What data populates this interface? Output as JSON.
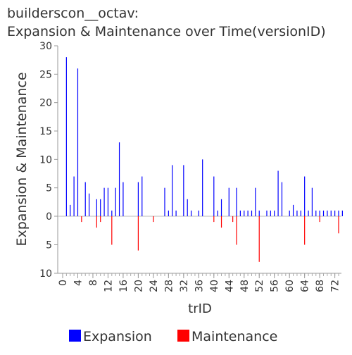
{
  "chart_data": {
    "type": "bar",
    "title_line1": "builderscon__octav:",
    "title_line2": "Expansion & Maintenance over Time(versionID)",
    "xlabel": "trID",
    "ylabel": "Expansion & Maintenance",
    "y_ticks_top": [
      "30",
      "25",
      "20",
      "15",
      "10",
      "5",
      "0"
    ],
    "y_ticks_bottom": [
      "5",
      "10"
    ],
    "ylim_top": 30,
    "ylim_bottom": 10,
    "x_ticks": [
      "0",
      "4",
      "8",
      "12",
      "16",
      "20",
      "24",
      "28",
      "32",
      "36",
      "40",
      "44",
      "48",
      "52",
      "56",
      "60",
      "64",
      "68",
      "72"
    ],
    "xlim": [
      0,
      73
    ],
    "legend_position": "bottom",
    "series": [
      {
        "name": "Expansion",
        "color": "#0000ff",
        "points": [
          [
            1,
            28
          ],
          [
            2,
            2
          ],
          [
            3,
            7
          ],
          [
            4,
            26
          ],
          [
            5,
            0
          ],
          [
            6,
            6
          ],
          [
            7,
            4
          ],
          [
            8,
            0
          ],
          [
            9,
            3
          ],
          [
            10,
            3
          ],
          [
            11,
            5
          ],
          [
            12,
            5
          ],
          [
            13,
            1
          ],
          [
            14,
            5
          ],
          [
            15,
            13
          ],
          [
            16,
            6
          ],
          [
            20,
            6
          ],
          [
            21,
            7
          ],
          [
            27,
            5
          ],
          [
            28,
            1
          ],
          [
            29,
            9
          ],
          [
            30,
            1
          ],
          [
            32,
            9
          ],
          [
            33,
            3
          ],
          [
            34,
            1
          ],
          [
            36,
            1
          ],
          [
            37,
            10
          ],
          [
            40,
            7
          ],
          [
            41,
            1
          ],
          [
            42,
            3
          ],
          [
            44,
            5
          ],
          [
            46,
            5
          ],
          [
            47,
            1
          ],
          [
            48,
            1
          ],
          [
            49,
            1
          ],
          [
            50,
            1
          ],
          [
            51,
            5
          ],
          [
            52,
            1
          ],
          [
            54,
            1
          ],
          [
            55,
            1
          ],
          [
            56,
            1
          ],
          [
            57,
            8
          ],
          [
            58,
            6
          ],
          [
            60,
            1
          ],
          [
            61,
            2
          ],
          [
            62,
            1
          ],
          [
            63,
            1
          ],
          [
            64,
            7
          ],
          [
            65,
            1
          ],
          [
            66,
            5
          ],
          [
            67,
            1
          ],
          [
            68,
            1
          ],
          [
            69,
            1
          ],
          [
            70,
            1
          ],
          [
            71,
            1
          ],
          [
            72,
            1
          ],
          [
            73,
            1
          ],
          [
            74,
            1
          ]
        ]
      },
      {
        "name": "Maintenance",
        "color": "#ff0000",
        "points": [
          [
            5,
            1
          ],
          [
            9,
            2
          ],
          [
            10,
            1
          ],
          [
            13,
            5
          ],
          [
            20,
            6
          ],
          [
            24,
            1
          ],
          [
            40,
            1
          ],
          [
            42,
            2
          ],
          [
            45,
            1
          ],
          [
            46,
            5
          ],
          [
            52,
            8
          ],
          [
            64,
            5
          ],
          [
            68,
            1
          ],
          [
            73,
            3
          ]
        ]
      }
    ]
  }
}
